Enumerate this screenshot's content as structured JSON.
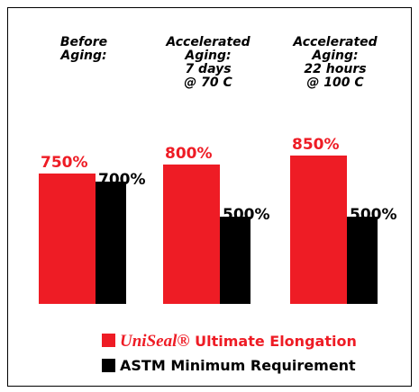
{
  "chart_data": {
    "type": "bar",
    "categories": [
      "Before\nAging:",
      "Accelerated\nAging:\n7 days\n@ 70 C",
      "Accelerated\nAging:\n22 hours\n@ 100 C"
    ],
    "series": [
      {
        "name": "UniSeal® Ultimate Elongation",
        "color": "#ee1c25",
        "values": [
          750,
          800,
          850
        ],
        "value_labels": [
          "750%",
          "800%",
          "850%"
        ]
      },
      {
        "name": "ASTM Minimum Requirement",
        "color": "#000000",
        "values": [
          700,
          500,
          500
        ],
        "value_labels": [
          "700%",
          "500%",
          "500%"
        ]
      }
    ]
  }
}
